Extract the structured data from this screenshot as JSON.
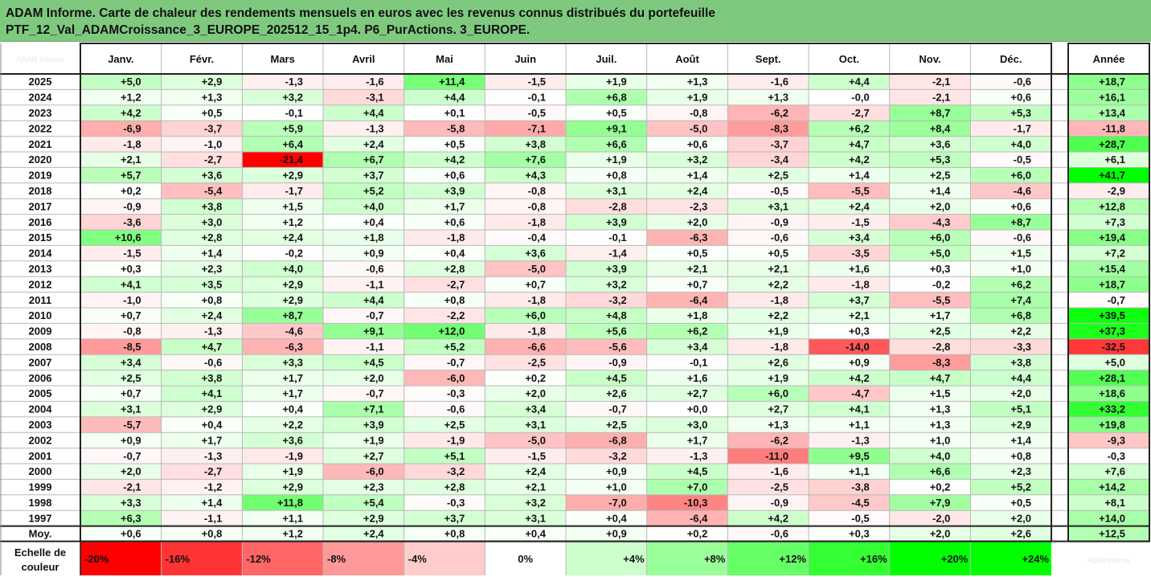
{
  "title": {
    "line1": "ADAM Informe. Carte de chaleur des rendements mensuels en euros avec les revenus connus distribués du portefeuille",
    "line2": "PTF_12_Val_ADAMCroissance_3_EUROPE_202512_15_1p4. P6_PurActions. 3_EUROPE."
  },
  "chart_data": {
    "type": "heatmap",
    "corner_label": "ADAM Informe",
    "watermark": "ADAM Informe",
    "months": [
      "Janv.",
      "Févr.",
      "Mars",
      "Avril",
      "Mai",
      "Juin",
      "Juil.",
      "Août",
      "Sept.",
      "Oct.",
      "Nov.",
      "Déc."
    ],
    "year_header": "Année",
    "rows": [
      {
        "year": "2025",
        "values": [
          "+5,0",
          "+2,9",
          "-1,3",
          "-1,6",
          "+11,4",
          "-1,5",
          "+1,9",
          "+1,3",
          "-1,6",
          "+4,4",
          "-2,1",
          "-0,6"
        ],
        "annual": "+18,7"
      },
      {
        "year": "2024",
        "values": [
          "+1,2",
          "+1,3",
          "+3,2",
          "-3,1",
          "+4,4",
          "-0,1",
          "+6,8",
          "+1,9",
          "+1,3",
          "-0,0",
          "-2,1",
          "+0,6"
        ],
        "annual": "+16,1"
      },
      {
        "year": "2023",
        "values": [
          "+4,2",
          "+0,5",
          "-0,1",
          "+4,4",
          "+0,1",
          "-0,5",
          "+0,5",
          "-0,8",
          "-6,2",
          "-2,7",
          "+8,7",
          "+5,3"
        ],
        "annual": "+13,4"
      },
      {
        "year": "2022",
        "values": [
          "-6,9",
          "-3,7",
          "+5,9",
          "-1,3",
          "-5,8",
          "-7,1",
          "+9,1",
          "-5,0",
          "-8,3",
          "+6,2",
          "+8,4",
          "-1,7"
        ],
        "annual": "-11,8"
      },
      {
        "year": "2021",
        "values": [
          "-1,8",
          "-1,0",
          "+6,4",
          "+2,4",
          "+0,5",
          "+3,8",
          "+6,6",
          "+0,6",
          "-3,7",
          "+4,7",
          "+3,6",
          "+4,0"
        ],
        "annual": "+28,7"
      },
      {
        "year": "2020",
        "values": [
          "+2,1",
          "-2,7",
          "-21,4",
          "+6,7",
          "+4,2",
          "+7,6",
          "+1,9",
          "+3,2",
          "-3,4",
          "+4,2",
          "+5,3",
          "-0,5"
        ],
        "annual": "+6,1"
      },
      {
        "year": "2019",
        "values": [
          "+5,7",
          "+3,6",
          "+2,9",
          "+3,7",
          "+0,6",
          "+4,3",
          "+0,8",
          "+1,4",
          "+2,5",
          "+1,4",
          "+2,5",
          "+6,0"
        ],
        "annual": "+41,7"
      },
      {
        "year": "2018",
        "values": [
          "+0,2",
          "-5,4",
          "-1,7",
          "+5,2",
          "+3,9",
          "-0,8",
          "+3,1",
          "+2,4",
          "-0,5",
          "-5,5",
          "+1,4",
          "-4,6"
        ],
        "annual": "-2,9"
      },
      {
        "year": "2017",
        "values": [
          "-0,9",
          "+3,8",
          "+1,5",
          "+4,0",
          "+1,7",
          "-0,8",
          "-2,8",
          "-2,3",
          "+3,1",
          "+2,4",
          "+2,0",
          "+0,6"
        ],
        "annual": "+12,8"
      },
      {
        "year": "2016",
        "values": [
          "-3,6",
          "+3,0",
          "+1,2",
          "+0,4",
          "+0,6",
          "-1,8",
          "+3,9",
          "+2,0",
          "-0,9",
          "-1,5",
          "-4,3",
          "+8,7"
        ],
        "annual": "+7,3"
      },
      {
        "year": "2015",
        "values": [
          "+10,6",
          "+2,8",
          "+2,4",
          "+1,8",
          "-1,8",
          "-0,4",
          "-0,1",
          "-6,3",
          "-0,6",
          "+3,4",
          "+6,0",
          "-0,6"
        ],
        "annual": "+19,4"
      },
      {
        "year": "2014",
        "values": [
          "-1,5",
          "+1,4",
          "-0,2",
          "+0,9",
          "+0,4",
          "+3,6",
          "-1,4",
          "+0,5",
          "+0,5",
          "-3,5",
          "+5,0",
          "+1,5"
        ],
        "annual": "+7,2"
      },
      {
        "year": "2013",
        "values": [
          "+0,3",
          "+2,3",
          "+4,0",
          "-0,6",
          "+2,8",
          "-5,0",
          "+3,9",
          "+2,1",
          "+2,1",
          "+1,6",
          "+0,3",
          "+1,0"
        ],
        "annual": "+15,4"
      },
      {
        "year": "2012",
        "values": [
          "+4,1",
          "+3,5",
          "+2,9",
          "-1,1",
          "-2,7",
          "+0,7",
          "+3,2",
          "+0,7",
          "+2,2",
          "-1,8",
          "-0,2",
          "+6,2"
        ],
        "annual": "+18,7"
      },
      {
        "year": "2011",
        "values": [
          "-1,0",
          "+0,8",
          "+2,9",
          "+4,4",
          "+0,8",
          "-1,8",
          "-3,2",
          "-6,4",
          "-1,8",
          "+3,7",
          "-5,5",
          "+7,4"
        ],
        "annual": "-0,7"
      },
      {
        "year": "2010",
        "values": [
          "+0,7",
          "+2,4",
          "+8,7",
          "-0,7",
          "-2,2",
          "+6,0",
          "+4,8",
          "+1,8",
          "+2,2",
          "+2,1",
          "+1,7",
          "+6,8"
        ],
        "annual": "+39,5"
      },
      {
        "year": "2009",
        "values": [
          "-0,8",
          "-1,3",
          "-4,6",
          "+9,1",
          "+12,0",
          "-1,8",
          "+5,6",
          "+6,2",
          "+1,9",
          "+0,3",
          "+2,5",
          "+2,2"
        ],
        "annual": "+37,3"
      },
      {
        "year": "2008",
        "values": [
          "-8,5",
          "+4,7",
          "-6,3",
          "-1,1",
          "+5,2",
          "-6,6",
          "-5,6",
          "+3,4",
          "-1,8",
          "-14,0",
          "-2,8",
          "-3,3"
        ],
        "annual": "-32,5"
      },
      {
        "year": "2007",
        "values": [
          "+3,4",
          "-0,6",
          "+3,3",
          "+4,5",
          "-0,7",
          "-2,5",
          "-0,9",
          "-0,1",
          "+2,6",
          "+0,9",
          "-8,3",
          "+3,8"
        ],
        "annual": "+5,0"
      },
      {
        "year": "2006",
        "values": [
          "+2,5",
          "+3,8",
          "+1,7",
          "+2,0",
          "-6,0",
          "+0,2",
          "+4,5",
          "+1,6",
          "+1,9",
          "+4,2",
          "+4,7",
          "+4,4"
        ],
        "annual": "+28,1"
      },
      {
        "year": "2005",
        "values": [
          "+0,7",
          "+4,1",
          "+1,7",
          "-0,7",
          "-0,3",
          "+2,0",
          "+2,6",
          "+2,7",
          "+6,0",
          "-4,7",
          "+1,5",
          "+2,0"
        ],
        "annual": "+18,6"
      },
      {
        "year": "2004",
        "values": [
          "+3,1",
          "+2,9",
          "+0,4",
          "+7,1",
          "-0,6",
          "+3,4",
          "-0,7",
          "+0,0",
          "+2,7",
          "+4,1",
          "+1,3",
          "+5,1"
        ],
        "annual": "+33,2"
      },
      {
        "year": "2003",
        "values": [
          "-5,7",
          "+0,4",
          "+2,2",
          "+3,9",
          "+2,5",
          "+3,1",
          "+2,5",
          "+3,0",
          "+1,3",
          "+1,1",
          "+1,3",
          "+2,9"
        ],
        "annual": "+19,8"
      },
      {
        "year": "2002",
        "values": [
          "+0,9",
          "+1,7",
          "+3,6",
          "+1,9",
          "-1,9",
          "-5,0",
          "-6,8",
          "+1,7",
          "-6,2",
          "-1,3",
          "+1,0",
          "+1,4"
        ],
        "annual": "-9,3"
      },
      {
        "year": "2001",
        "values": [
          "-0,7",
          "-1,3",
          "-1,9",
          "+2,7",
          "+5,1",
          "-1,5",
          "-3,2",
          "-1,3",
          "-11,0",
          "+9,5",
          "+4,0",
          "+0,8"
        ],
        "annual": "-0,3"
      },
      {
        "year": "2000",
        "values": [
          "+2,0",
          "-2,7",
          "+1,9",
          "-6,0",
          "-3,2",
          "+2,4",
          "+0,9",
          "+4,5",
          "-1,6",
          "+1,1",
          "+6,6",
          "+2,3"
        ],
        "annual": "+7,6"
      },
      {
        "year": "1999",
        "values": [
          "-2,1",
          "-1,2",
          "+2,9",
          "+2,3",
          "+2,8",
          "+2,1",
          "+1,0",
          "+7,0",
          "-2,5",
          "-3,8",
          "+0,2",
          "+5,2"
        ],
        "annual": "+14,2"
      },
      {
        "year": "1998",
        "values": [
          "+3,3",
          "+1,4",
          "+11,8",
          "+5,4",
          "-0,3",
          "+3,2",
          "-7,0",
          "-10,3",
          "-0,9",
          "-4,5",
          "+7,9",
          "+0,5"
        ],
        "annual": "+8,1"
      },
      {
        "year": "1997",
        "values": [
          "+6,3",
          "-1,1",
          "+1,1",
          "+2,9",
          "+3,7",
          "+3,1",
          "+0,4",
          "-6,4",
          "+4,2",
          "-0,5",
          "-2,0",
          "+2,0"
        ],
        "annual": "+14,0"
      }
    ],
    "average": {
      "label": "Moy.",
      "values": [
        "+0,6",
        "+0,8",
        "+1,2",
        "+2,4",
        "+0,8",
        "+0,4",
        "+0,9",
        "+0,2",
        "-0,6",
        "+0,3",
        "+2,0",
        "+2,6"
      ],
      "annual": "+12,5"
    },
    "scale": {
      "label_line1": "Echelle de",
      "label_line2": "couleur",
      "steps": [
        {
          "value": -20,
          "label": "-20%"
        },
        {
          "value": -16,
          "label": "-16%"
        },
        {
          "value": -12,
          "label": "-12%"
        },
        {
          "value": -8,
          "label": "-8%"
        },
        {
          "value": -4,
          "label": "-4%"
        },
        {
          "value": 0,
          "label": "0%"
        },
        {
          "value": 4,
          "label": "+4%"
        },
        {
          "value": 8,
          "label": "+8%"
        },
        {
          "value": 12,
          "label": "+12%"
        },
        {
          "value": 16,
          "label": "+16%"
        },
        {
          "value": 20,
          "label": "+20%"
        },
        {
          "value": 24,
          "label": "+24%"
        }
      ]
    },
    "colors": {
      "negative": "#ff0000",
      "positive": "#00ff00",
      "neutral": "#ffffff",
      "title_bg": "#7fc97f"
    }
  }
}
